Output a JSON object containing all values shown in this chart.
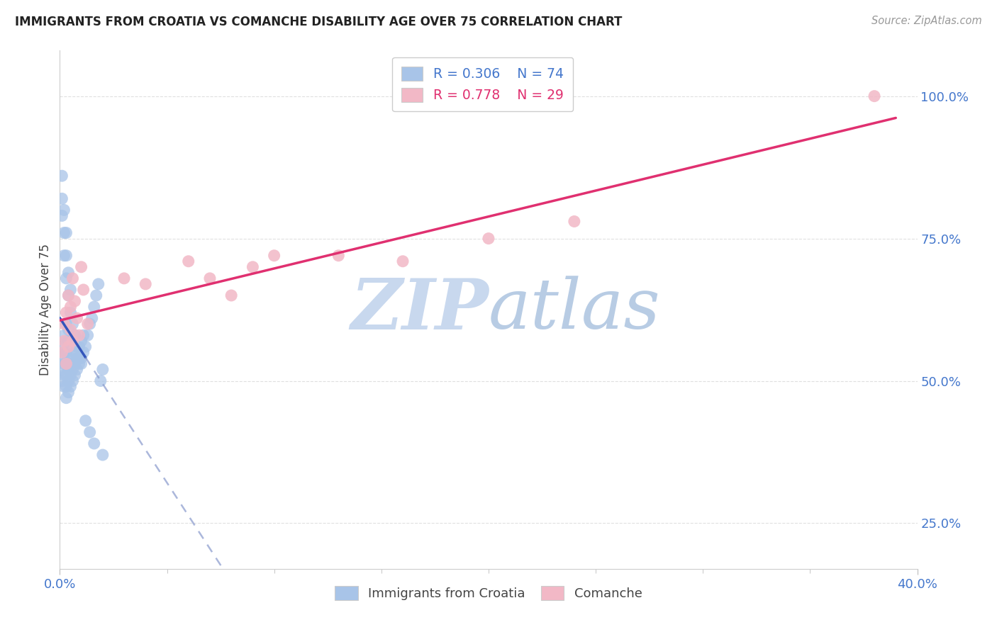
{
  "title": "IMMIGRANTS FROM CROATIA VS COMANCHE DISABILITY AGE OVER 75 CORRELATION CHART",
  "source": "Source: ZipAtlas.com",
  "ylabel": "Disability Age Over 75",
  "xlim": [
    0.0,
    0.4
  ],
  "ylim": [
    0.17,
    1.08
  ],
  "ytick_positions": [
    0.25,
    0.5,
    0.75,
    1.0
  ],
  "ytick_labels": [
    "25.0%",
    "50.0%",
    "75.0%",
    "100.0%"
  ],
  "xtick_positions": [
    0.0,
    0.4
  ],
  "xtick_labels": [
    "0.0%",
    "40.0%"
  ],
  "minor_xticks": [
    0.05,
    0.1,
    0.15,
    0.2,
    0.25,
    0.3,
    0.35
  ],
  "legend_r1": "0.306",
  "legend_n1": "74",
  "legend_r2": "0.778",
  "legend_n2": "29",
  "legend_label1": "Immigrants from Croatia",
  "legend_label2": "Comanche",
  "blue_scatter_color": "#a8c4e8",
  "pink_scatter_color": "#f2b8c6",
  "blue_line_color": "#3355bb",
  "blue_dash_color": "#8899cc",
  "pink_line_color": "#e03070",
  "title_color": "#222222",
  "source_color": "#999999",
  "axis_label_color": "#444444",
  "tick_color": "#4477cc",
  "watermark_zip_color": "#c8d8ee",
  "watermark_atlas_color": "#b8cce4",
  "background_color": "#ffffff",
  "grid_color": "#dddddd",
  "blue_x": [
    0.001,
    0.001,
    0.001,
    0.001,
    0.002,
    0.002,
    0.002,
    0.002,
    0.002,
    0.003,
    0.003,
    0.003,
    0.003,
    0.003,
    0.003,
    0.003,
    0.004,
    0.004,
    0.004,
    0.004,
    0.004,
    0.004,
    0.005,
    0.005,
    0.005,
    0.005,
    0.006,
    0.006,
    0.006,
    0.006,
    0.007,
    0.007,
    0.007,
    0.007,
    0.008,
    0.008,
    0.008,
    0.009,
    0.009,
    0.01,
    0.01,
    0.011,
    0.011,
    0.012,
    0.013,
    0.014,
    0.015,
    0.016,
    0.017,
    0.018,
    0.019,
    0.02,
    0.001,
    0.001,
    0.001,
    0.002,
    0.002,
    0.002,
    0.003,
    0.003,
    0.003,
    0.004,
    0.004,
    0.005,
    0.005,
    0.006,
    0.007,
    0.008,
    0.009,
    0.01,
    0.012,
    0.014,
    0.016,
    0.02
  ],
  "blue_y": [
    0.5,
    0.52,
    0.54,
    0.56,
    0.49,
    0.51,
    0.53,
    0.55,
    0.58,
    0.47,
    0.49,
    0.51,
    0.53,
    0.55,
    0.57,
    0.6,
    0.48,
    0.5,
    0.52,
    0.54,
    0.57,
    0.59,
    0.49,
    0.51,
    0.53,
    0.56,
    0.5,
    0.52,
    0.54,
    0.57,
    0.51,
    0.53,
    0.55,
    0.58,
    0.52,
    0.54,
    0.56,
    0.53,
    0.56,
    0.54,
    0.57,
    0.55,
    0.58,
    0.56,
    0.58,
    0.6,
    0.61,
    0.63,
    0.65,
    0.67,
    0.5,
    0.52,
    0.79,
    0.82,
    0.86,
    0.72,
    0.76,
    0.8,
    0.68,
    0.72,
    0.76,
    0.65,
    0.69,
    0.62,
    0.66,
    0.6,
    0.58,
    0.56,
    0.54,
    0.53,
    0.43,
    0.41,
    0.39,
    0.37
  ],
  "pink_x": [
    0.001,
    0.002,
    0.002,
    0.003,
    0.003,
    0.004,
    0.004,
    0.005,
    0.005,
    0.006,
    0.006,
    0.007,
    0.008,
    0.009,
    0.01,
    0.011,
    0.013,
    0.03,
    0.04,
    0.06,
    0.07,
    0.08,
    0.09,
    0.1,
    0.13,
    0.16,
    0.2,
    0.24,
    0.38
  ],
  "pink_y": [
    0.55,
    0.57,
    0.6,
    0.53,
    0.62,
    0.56,
    0.65,
    0.59,
    0.63,
    0.57,
    0.68,
    0.64,
    0.61,
    0.58,
    0.7,
    0.66,
    0.6,
    0.68,
    0.67,
    0.71,
    0.68,
    0.65,
    0.7,
    0.72,
    0.72,
    0.71,
    0.75,
    0.78,
    1.0
  ]
}
